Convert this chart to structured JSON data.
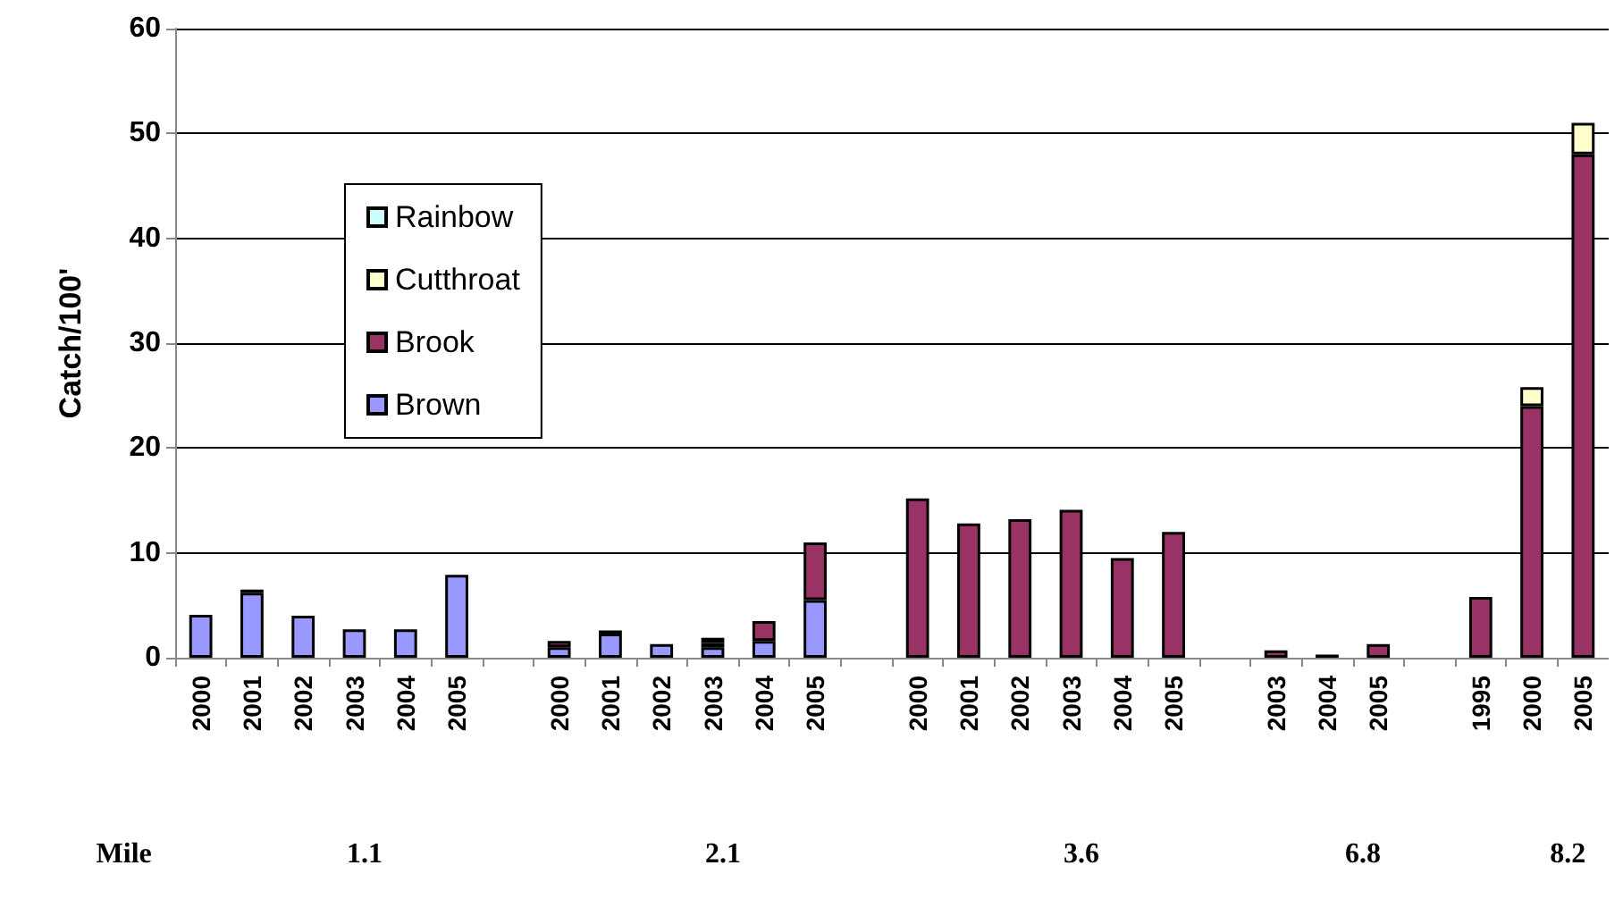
{
  "chart_data": {
    "type": "bar",
    "stacked": true,
    "ylabel": "Catch/100'",
    "categories": [
      "2000",
      "2001",
      "2002",
      "2003",
      "2004",
      "2005",
      null,
      "2000",
      "2001",
      "2002",
      "2003",
      "2004",
      "2005",
      null,
      "2000",
      "2001",
      "2002",
      "2003",
      "2004",
      "2005",
      null,
      "2003",
      "2004",
      "2005",
      null,
      "1995",
      "2000",
      "2005"
    ],
    "series": [
      {
        "name": "Brown",
        "color": "#9999ff",
        "values": [
          4.1,
          6.2,
          4,
          2.7,
          2.7,
          7.9,
          null,
          1.0,
          2.3,
          1.3,
          1.0,
          1.6,
          5.5,
          null,
          null,
          null,
          null,
          null,
          null,
          null,
          null,
          null,
          null,
          null,
          null,
          null,
          null,
          null
        ]
      },
      {
        "name": "Brook",
        "color": "#993366",
        "values": [
          null,
          0.3,
          null,
          null,
          null,
          null,
          null,
          0.6,
          0.3,
          null,
          0.4,
          1.9,
          5.5,
          null,
          15.2,
          12.8,
          13.2,
          14.1,
          9.5,
          12.0,
          null,
          0.7,
          0.3,
          1.3,
          null,
          5.8,
          24,
          48
        ]
      },
      {
        "name": "Cutthroat",
        "color": "#ffffcc",
        "values": [
          null,
          null,
          null,
          null,
          null,
          null,
          null,
          null,
          null,
          null,
          null,
          null,
          null,
          null,
          null,
          null,
          null,
          null,
          null,
          null,
          null,
          null,
          null,
          null,
          null,
          null,
          1.8,
          3
        ]
      },
      {
        "name": "Rainbow",
        "color": "#ccffff",
        "values": [
          null,
          null,
          null,
          null,
          null,
          null,
          null,
          null,
          null,
          null,
          0.5,
          null,
          null,
          null,
          null,
          null,
          null,
          null,
          null,
          null,
          null,
          null,
          null,
          null,
          null,
          null,
          null,
          null
        ]
      }
    ],
    "ylim": [
      0,
      60
    ],
    "yticks": [
      0,
      10,
      20,
      30,
      40,
      50,
      60
    ],
    "grid": "y",
    "legend": "top left",
    "annotations": [
      "Mile",
      "1.1",
      "2.1",
      "3.6",
      "6.8",
      "8.2"
    ]
  }
}
